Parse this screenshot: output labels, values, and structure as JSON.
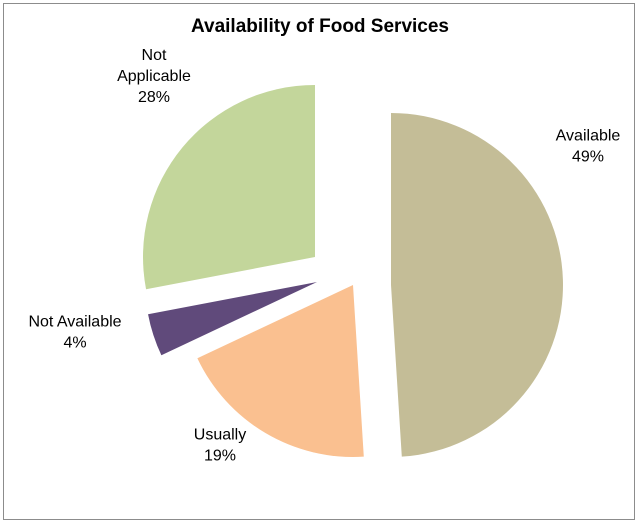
{
  "chart_data": {
    "type": "pie",
    "title": "Availability of Food Services",
    "exploded": true,
    "slices": [
      {
        "label_lines": [
          "Available"
        ],
        "pct_text": "49%",
        "value": 49,
        "color": "#c4bd97"
      },
      {
        "label_lines": [
          "Usually"
        ],
        "pct_text": "19%",
        "value": 19,
        "color": "#fac090"
      },
      {
        "label_lines": [
          "Not Available"
        ],
        "pct_text": "4%",
        "value": 4,
        "color": "#604a7b"
      },
      {
        "label_lines": [
          "Not",
          "Applicable"
        ],
        "pct_text": "28%",
        "value": 28,
        "color": "#c3d69b"
      }
    ]
  }
}
